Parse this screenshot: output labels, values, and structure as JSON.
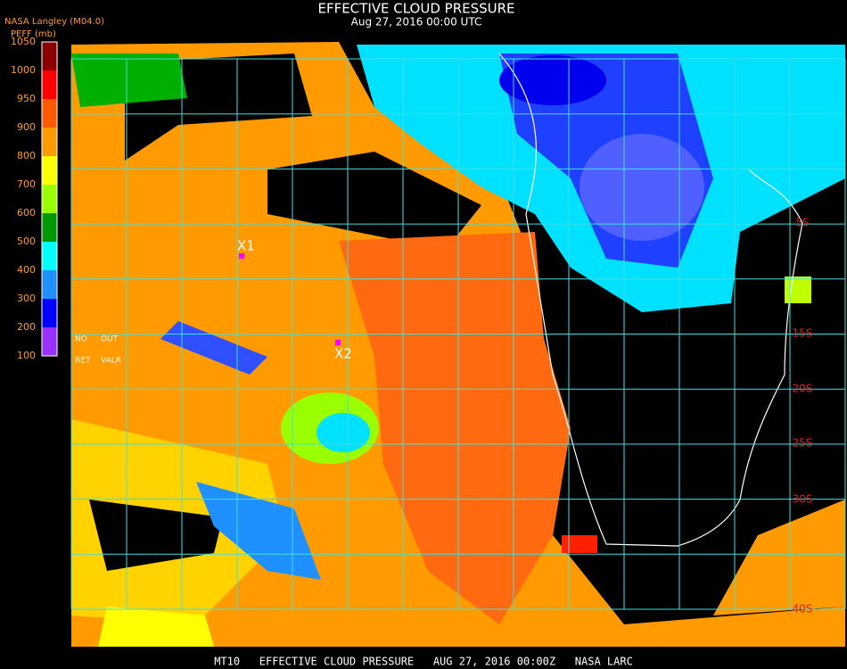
{
  "header": {
    "title": "EFFECTIVE CLOUD PRESSURE",
    "subtitle": "Aug 27, 2016 00:00 UTC",
    "source": "NASA Langley (M04.0)"
  },
  "legend": {
    "title": "PEFF (mb)",
    "ticks": [
      1050,
      1000,
      950,
      900,
      800,
      700,
      600,
      500,
      400,
      300,
      200,
      100
    ],
    "colors": [
      "#8b0000",
      "#ff0000",
      "#ff5a00",
      "#ff9a00",
      "#ffff00",
      "#9aff00",
      "#009a00",
      "#00ffff",
      "#1e90ff",
      "#0000ff",
      "#9a30ff"
    ],
    "notes": [
      "NO",
      "OUT",
      "RET",
      "VALR"
    ]
  },
  "map": {
    "markers": [
      "X1",
      "X2"
    ],
    "lat_labels": [
      "5S",
      "15S",
      "20S",
      "25S",
      "30S",
      "40S"
    ]
  },
  "footer": {
    "caption": "MT10   EFFECTIVE CLOUD PRESSURE   AUG 27, 2016 00:00Z   NASA LARC"
  }
}
